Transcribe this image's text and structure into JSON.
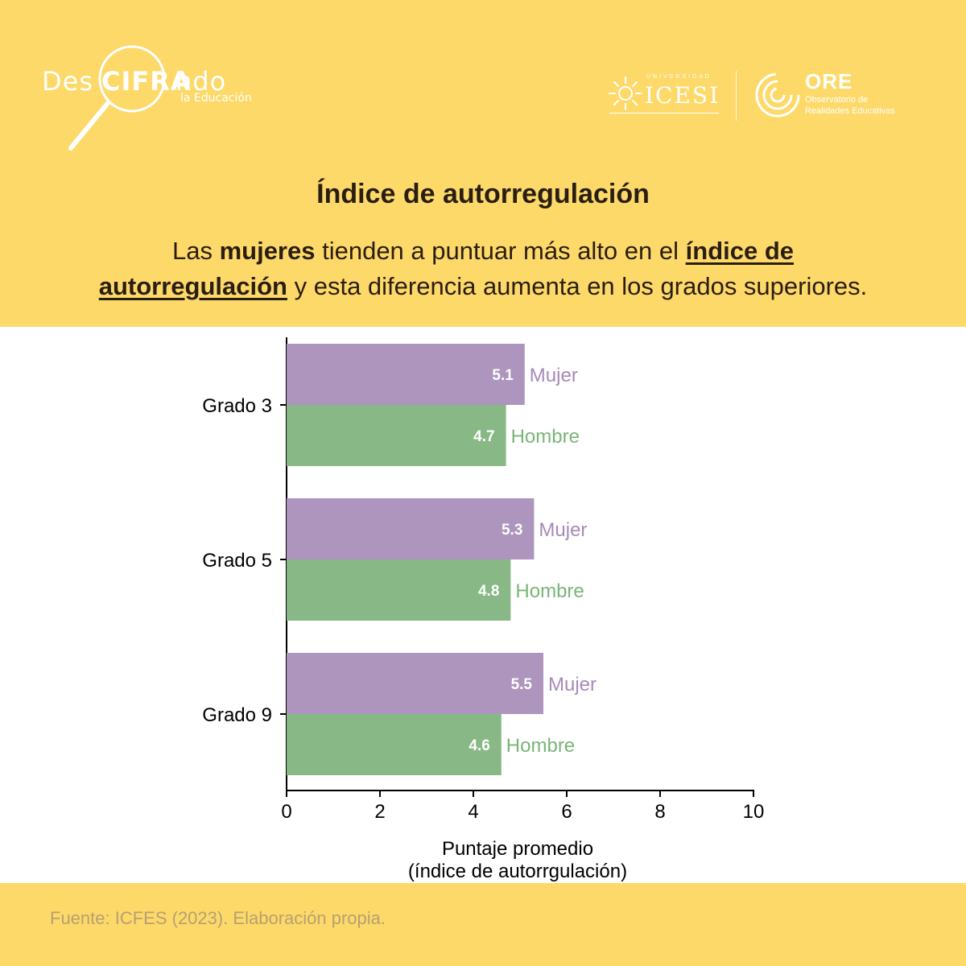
{
  "brand": {
    "name_part1": "Des",
    "name_part2": "CIFRA",
    "name_part3": "ndo",
    "subtitle": "la Educación"
  },
  "logos": {
    "icesi_small": "UNIVERSIDAD",
    "icesi_big": "ICESI",
    "ore_title": "ORE",
    "ore_sub1": "Observatorio de",
    "ore_sub2": "Realidades Educativas"
  },
  "header": {
    "title": "Índice de autorregulación",
    "subtitle_pre": "Las ",
    "subtitle_bold": "mujeres",
    "subtitle_mid": " tienden a puntuar más alto en el ",
    "subtitle_link1": "índice de ",
    "subtitle_link2": "autorregulación",
    "subtitle_post": " y esta diferencia aumenta en los grados superiores."
  },
  "colors": {
    "band": "#fdd96a",
    "mujer": "#ad95bd",
    "hombre": "#88b886",
    "mujer_label": "#a68ab8",
    "hombre_label": "#7bb479"
  },
  "chart_data": {
    "type": "bar",
    "orientation": "horizontal",
    "categories": [
      "Grado 3",
      "Grado 5",
      "Grado 9"
    ],
    "series": [
      {
        "name": "Mujer",
        "values": [
          5.1,
          5.3,
          5.5
        ],
        "labels": [
          "5.1",
          "5.3",
          "5.5"
        ]
      },
      {
        "name": "Hombre",
        "values": [
          4.7,
          4.8,
          4.6
        ],
        "labels": [
          "4.7",
          "4.8",
          "4.6"
        ]
      }
    ],
    "xlim": [
      0,
      10
    ],
    "xticks": [
      0,
      2,
      4,
      6,
      8,
      10
    ],
    "xlabel_line1": "Puntaje promedio",
    "xlabel_line2": "(índice de autorrgulación)",
    "grid": false,
    "legend": "inline labels beside bars"
  },
  "footer": {
    "source": "Fuente: ICFES (2023). Elaboración propia."
  }
}
